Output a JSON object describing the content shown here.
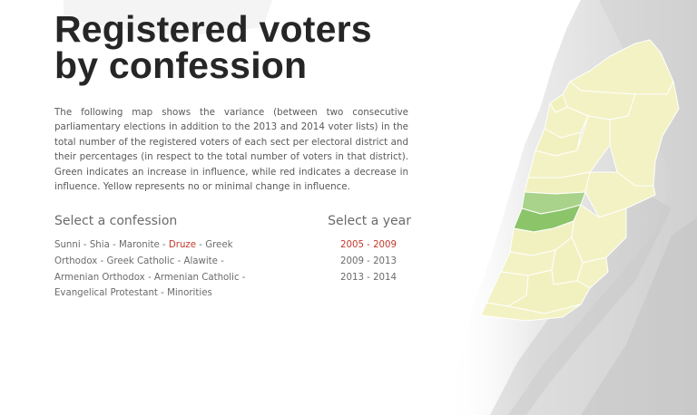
{
  "title_line1": "Registered voters",
  "title_line2": "by confession",
  "description": "The following map shows the variance (between two consecutive parliamentary elections in addition to the 2013 and 2014 voter lists) in the total number of the registered voters of each sect per electoral district and their percentages (in respect to the total number of voters in that district). Green indicates an increase in influence, while red indicates a decrease in influence. Yellow represents no or minimal change in influence.",
  "confession_selector": {
    "heading": "Select a confession",
    "separator": " - ",
    "items": [
      {
        "label": "Sunni",
        "active": false
      },
      {
        "label": "Shia",
        "active": false
      },
      {
        "label": "Maronite",
        "active": false
      },
      {
        "label": "Druze",
        "active": true
      },
      {
        "label": "Greek Orthodox",
        "active": false
      },
      {
        "label": "Greek Catholic",
        "active": false
      },
      {
        "label": "Alawite",
        "active": false
      },
      {
        "label": "Armenian Orthodox",
        "active": false
      },
      {
        "label": "Armenian Catholic",
        "active": false
      },
      {
        "label": "Evangelical Protestant",
        "active": false
      },
      {
        "label": "Minorities",
        "active": false
      }
    ]
  },
  "year_selector": {
    "heading": "Select a year",
    "items": [
      {
        "label": "2005 - 2009",
        "active": true
      },
      {
        "label": "2009 - 2013",
        "active": false
      },
      {
        "label": "2013 - 2014",
        "active": false
      }
    ]
  },
  "colors": {
    "active": "#c0392b",
    "increase": "#9ccc78",
    "no_change": "#f2f2c2",
    "terrain": "#d9d9d9"
  }
}
